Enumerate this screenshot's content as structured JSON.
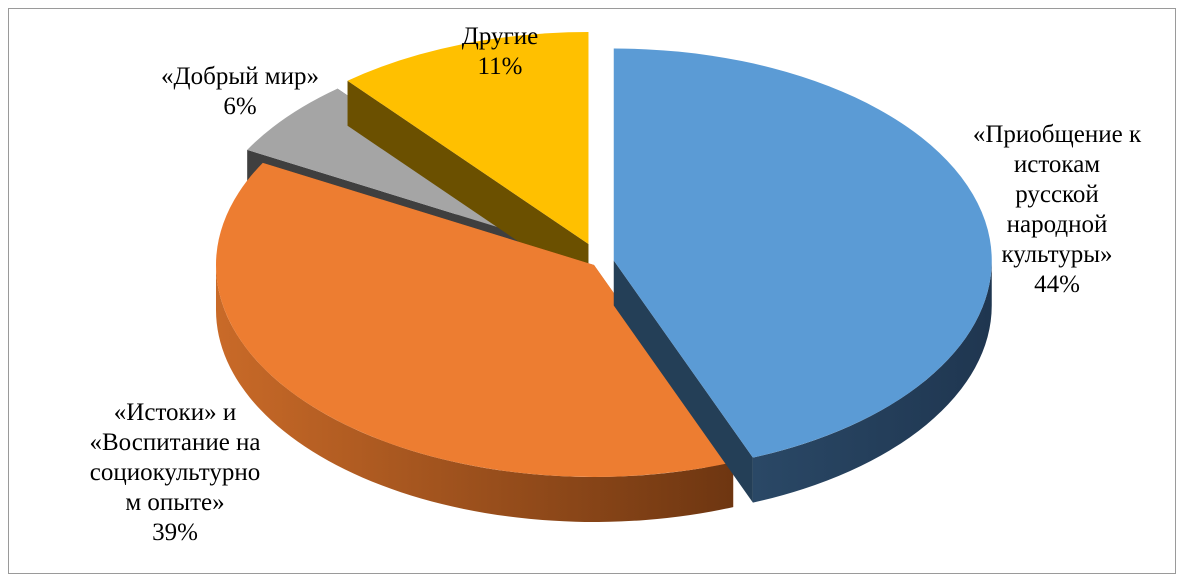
{
  "chart_data": {
    "type": "pie",
    "title": "",
    "series": [
      {
        "values": [
          44,
          39,
          6,
          11
        ],
        "labels": [
          "«Приобщение к истокам русской народной культуры»",
          "«Истоки» и «Воспитание на социокультурном опыте»",
          "«Добрый мир»",
          "Другие"
        ]
      }
    ],
    "slices": [
      {
        "name": "«Приобщение к истокам русской народной культуры»",
        "value": 44,
        "value_label": "44%",
        "color": "#5B9BD5",
        "side_color": "#243F57",
        "label_lines": [
          "«Приобщение к",
          "истокам",
          "русской",
          "народной",
          "культуры»"
        ]
      },
      {
        "name": "«Истоки» и «Воспитание на социокультурном опыте»",
        "value": 39,
        "value_label": "39%",
        "color": "#ED7D31",
        "side_color": "#A8541E",
        "label_lines": [
          "«Истоки» и",
          "«Воспитание на",
          "социокультурно",
          "м опыте»"
        ]
      },
      {
        "name": "«Добрый мир»",
        "value": 6,
        "value_label": "6%",
        "color": "#A5A5A5",
        "side_color": "#3F3F3F",
        "label_lines": [
          "«Добрый мир»"
        ]
      },
      {
        "name": "Другие",
        "value": 11,
        "value_label": "11%",
        "color": "#FFC000",
        "side_color": "#6B5000",
        "label_lines": [
          "Другие"
        ]
      }
    ],
    "style": "3d-exploded",
    "legend": "none",
    "grid": false
  }
}
